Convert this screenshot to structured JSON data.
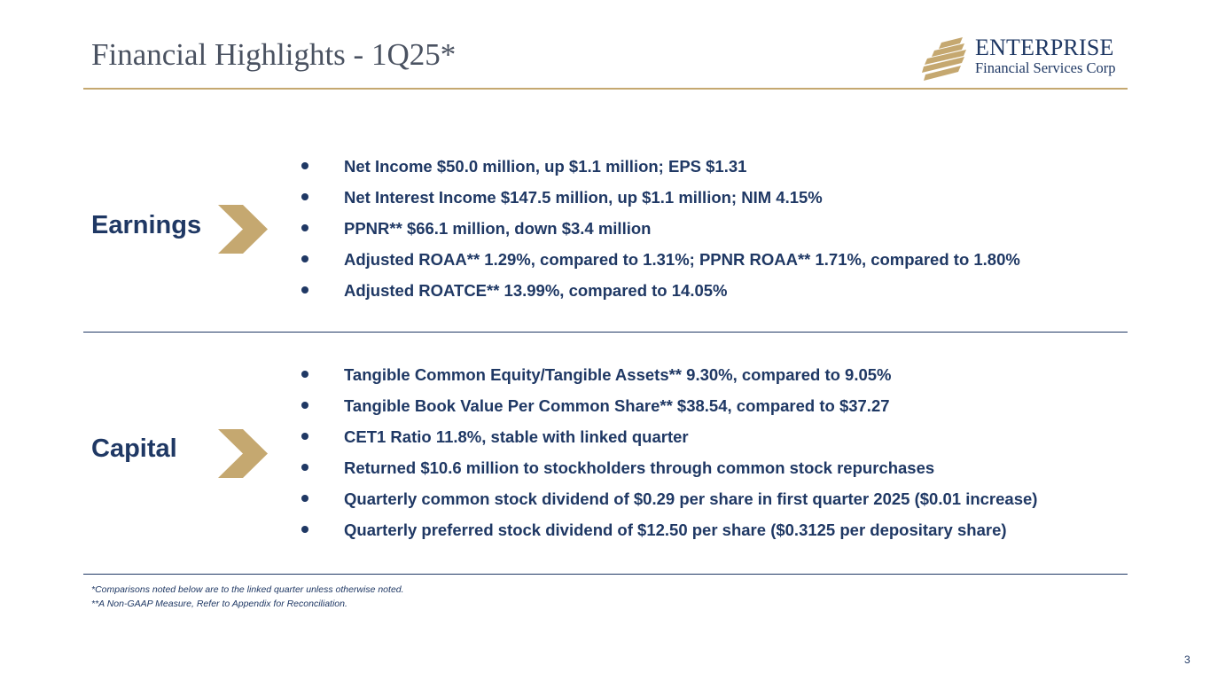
{
  "header": {
    "title": "Financial Highlights - 1Q25*",
    "logo": {
      "name": "ENTERPRISE",
      "subtitle": "Financial Services Corp",
      "icon": "enterprise-logo-icon",
      "color": "#1f3864",
      "accent": "#c5a870"
    }
  },
  "sections": [
    {
      "label": "Earnings",
      "icon": "chevron-right-icon",
      "bullets": [
        "Net Income $50.0 million, up $1.1 million; EPS $1.31",
        "Net Interest Income $147.5 million, up $1.1 million; NIM 4.15%",
        "PPNR** $66.1 million, down $3.4 million",
        "Adjusted ROAA** 1.29%, compared to 1.31%; PPNR ROAA** 1.71%, compared to 1.80%",
        "Adjusted ROATCE** 13.99%, compared to 14.05%"
      ]
    },
    {
      "label": "Capital",
      "icon": "chevron-right-icon",
      "bullets": [
        "Tangible Common Equity/Tangible Assets** 9.30%, compared to 9.05%",
        "Tangible Book Value Per Common Share** $38.54, compared to $37.27",
        "CET1 Ratio 11.8%, stable with linked quarter",
        "Returned $10.6 million to stockholders through common stock repurchases",
        "Quarterly common stock dividend of $0.29 per share in first quarter 2025 ($0.01 increase)",
        "Quarterly preferred stock dividend of $12.50 per share ($0.3125 per depositary share)"
      ]
    }
  ],
  "footnotes": [
    "*Comparisons noted below are to the linked quarter unless otherwise noted.",
    "**A Non-GAAP Measure, Refer to Appendix for Reconciliation."
  ],
  "page_number": "3",
  "colors": {
    "primary": "#1f3864",
    "gold": "#c5a870",
    "title": "#4a5261"
  }
}
